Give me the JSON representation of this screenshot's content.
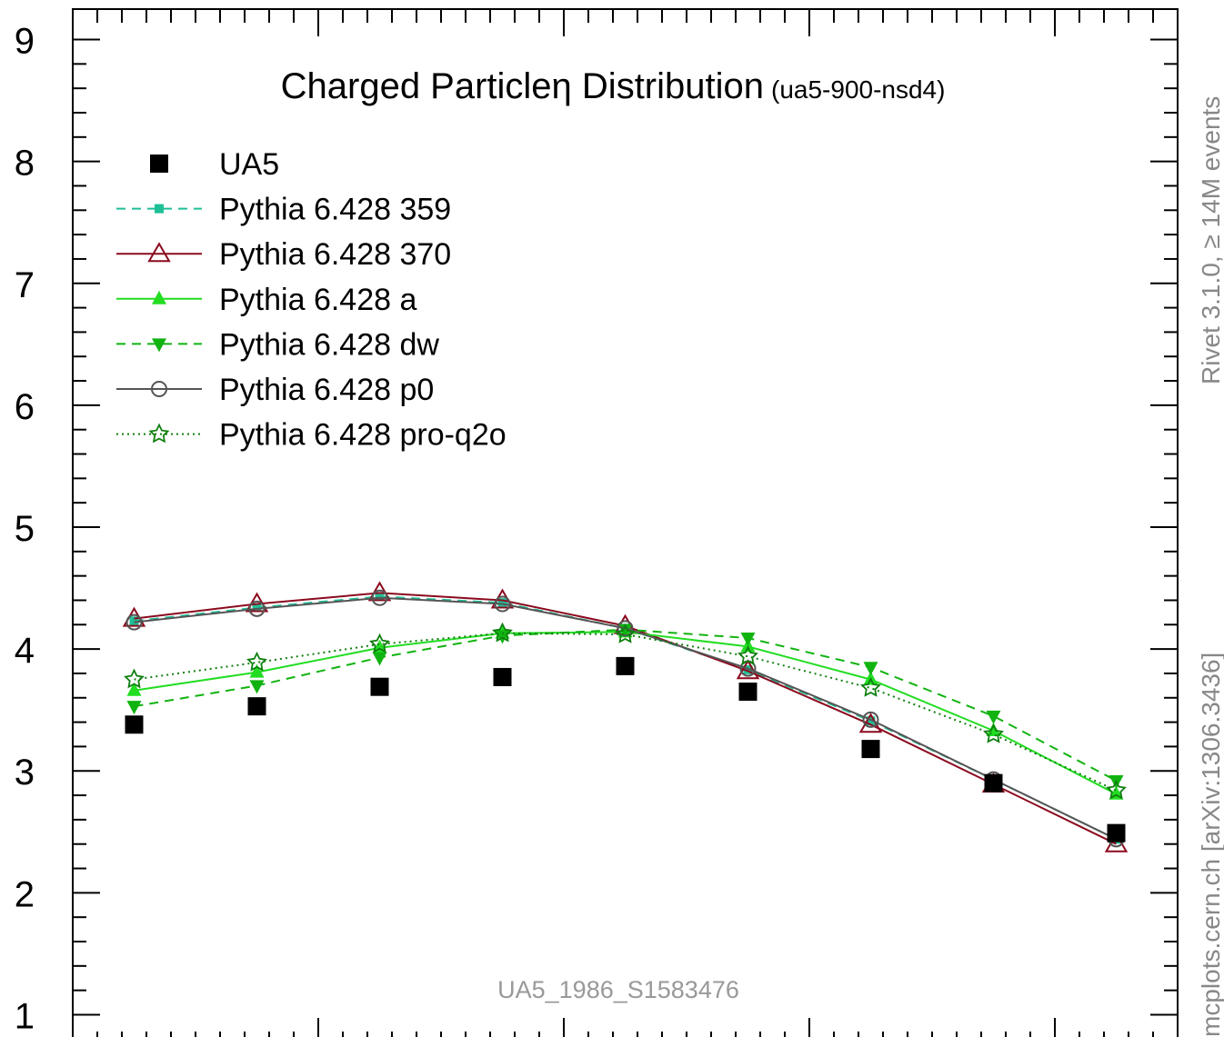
{
  "chart_data": {
    "type": "line",
    "title": "Charged Particleη Distribution",
    "subtitle": "(ua5-900-nsd4)",
    "xlabel": "",
    "ylabel": "",
    "ylim": [
      0.75,
      9.25
    ],
    "yticks": [
      "1",
      "2",
      "3",
      "4",
      "5",
      "6",
      "7",
      "8",
      "9"
    ],
    "x": [
      0.25,
      0.75,
      1.25,
      1.75,
      2.25,
      2.75,
      3.25,
      3.75,
      4.25
    ],
    "xlim": [
      0,
      4.5
    ],
    "grid": false,
    "legend_placement": "top-left",
    "analysis_id": "UA5_1986_S1583476",
    "series": [
      {
        "name": "UA5",
        "marker": "square",
        "line": "none",
        "color": "#000000",
        "values": [
          3.38,
          3.53,
          3.69,
          3.77,
          3.86,
          3.65,
          3.18,
          2.9,
          2.49
        ]
      },
      {
        "name": "Pythia 6.428 359",
        "marker": "small-square",
        "line": "dashed",
        "color": "#1fbf96",
        "values": [
          4.23,
          4.34,
          4.43,
          4.38,
          4.17,
          3.83,
          3.41,
          2.93,
          2.44
        ]
      },
      {
        "name": "Pythia 6.428 370",
        "marker": "open-triangle",
        "line": "solid",
        "color": "#8b0a1e",
        "values": [
          4.25,
          4.37,
          4.46,
          4.4,
          4.19,
          3.82,
          3.38,
          2.89,
          2.4
        ]
      },
      {
        "name": "Pythia 6.428 a",
        "marker": "triangle",
        "line": "solid",
        "color": "#22dd22",
        "values": [
          3.66,
          3.81,
          4.01,
          4.13,
          4.14,
          4.02,
          3.75,
          3.33,
          2.81
        ]
      },
      {
        "name": "Pythia 6.428 dw",
        "marker": "inverted-triangle",
        "line": "dashed",
        "color": "#11b311",
        "values": [
          3.53,
          3.7,
          3.93,
          4.11,
          4.16,
          4.09,
          3.85,
          3.45,
          2.92
        ]
      },
      {
        "name": "Pythia 6.428 p0",
        "marker": "open-circle",
        "line": "solid",
        "color": "#555555",
        "values": [
          4.22,
          4.33,
          4.42,
          4.37,
          4.17,
          3.84,
          3.42,
          2.93,
          2.44
        ]
      },
      {
        "name": "Pythia 6.428 pro-q2o",
        "marker": "open-star",
        "line": "dotted",
        "color": "#0f7f0f",
        "values": [
          3.75,
          3.89,
          4.04,
          4.13,
          4.12,
          3.94,
          3.68,
          3.3,
          2.84
        ]
      }
    ]
  },
  "side_text": {
    "rivet": "Rivet 3.1.0, ≥ 14M events",
    "mcplots": "mcplots.cern.ch [arXiv:1306.3436]"
  }
}
